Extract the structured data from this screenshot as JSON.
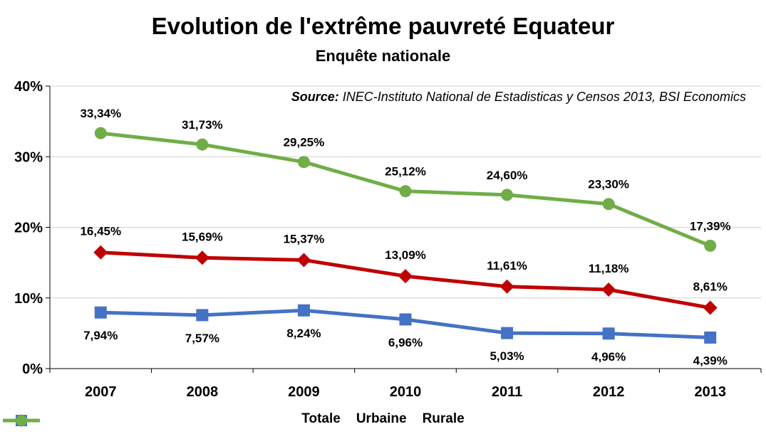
{
  "chart_data": {
    "type": "line",
    "title": "Evolution de l'extrême pauvreté Equateur",
    "subtitle": "Enquête nationale",
    "source_label": "Source:",
    "source_text": "INEC-Instituto  National de Estadisticas y Censos 2013, BSI Economics",
    "categories": [
      "2007",
      "2008",
      "2009",
      "2010",
      "2011",
      "2012",
      "2013"
    ],
    "ylim": [
      0,
      40
    ],
    "yticks": [
      0,
      10,
      20,
      30,
      40
    ],
    "ytick_labels": [
      "0%",
      "10%",
      "20%",
      "30%",
      "40%"
    ],
    "legend_position": "bottom",
    "series": [
      {
        "name": "Totale",
        "color": "#C00000",
        "marker": "diamond",
        "values": [
          16.45,
          15.69,
          15.37,
          13.09,
          11.61,
          11.18,
          8.61
        ],
        "labels": [
          "16,45%",
          "15,69%",
          "15,37%",
          "13,09%",
          "11,61%",
          "11,18%",
          "8,61%"
        ]
      },
      {
        "name": "Urbaine",
        "color": "#4472C4",
        "marker": "square",
        "values": [
          7.94,
          7.57,
          8.24,
          6.96,
          5.03,
          4.96,
          4.39
        ],
        "labels": [
          "7,94%",
          "7,57%",
          "8,24%",
          "6,96%",
          "5,03%",
          "4,96%",
          "4,39%"
        ]
      },
      {
        "name": "Rurale",
        "color": "#70AD47",
        "marker": "circle",
        "values": [
          33.34,
          31.73,
          29.25,
          25.12,
          24.6,
          23.3,
          17.39
        ],
        "labels": [
          "33,34%",
          "31,73%",
          "29,25%",
          "25,12%",
          "24,60%",
          "23,30%",
          "17,39%"
        ]
      }
    ]
  }
}
